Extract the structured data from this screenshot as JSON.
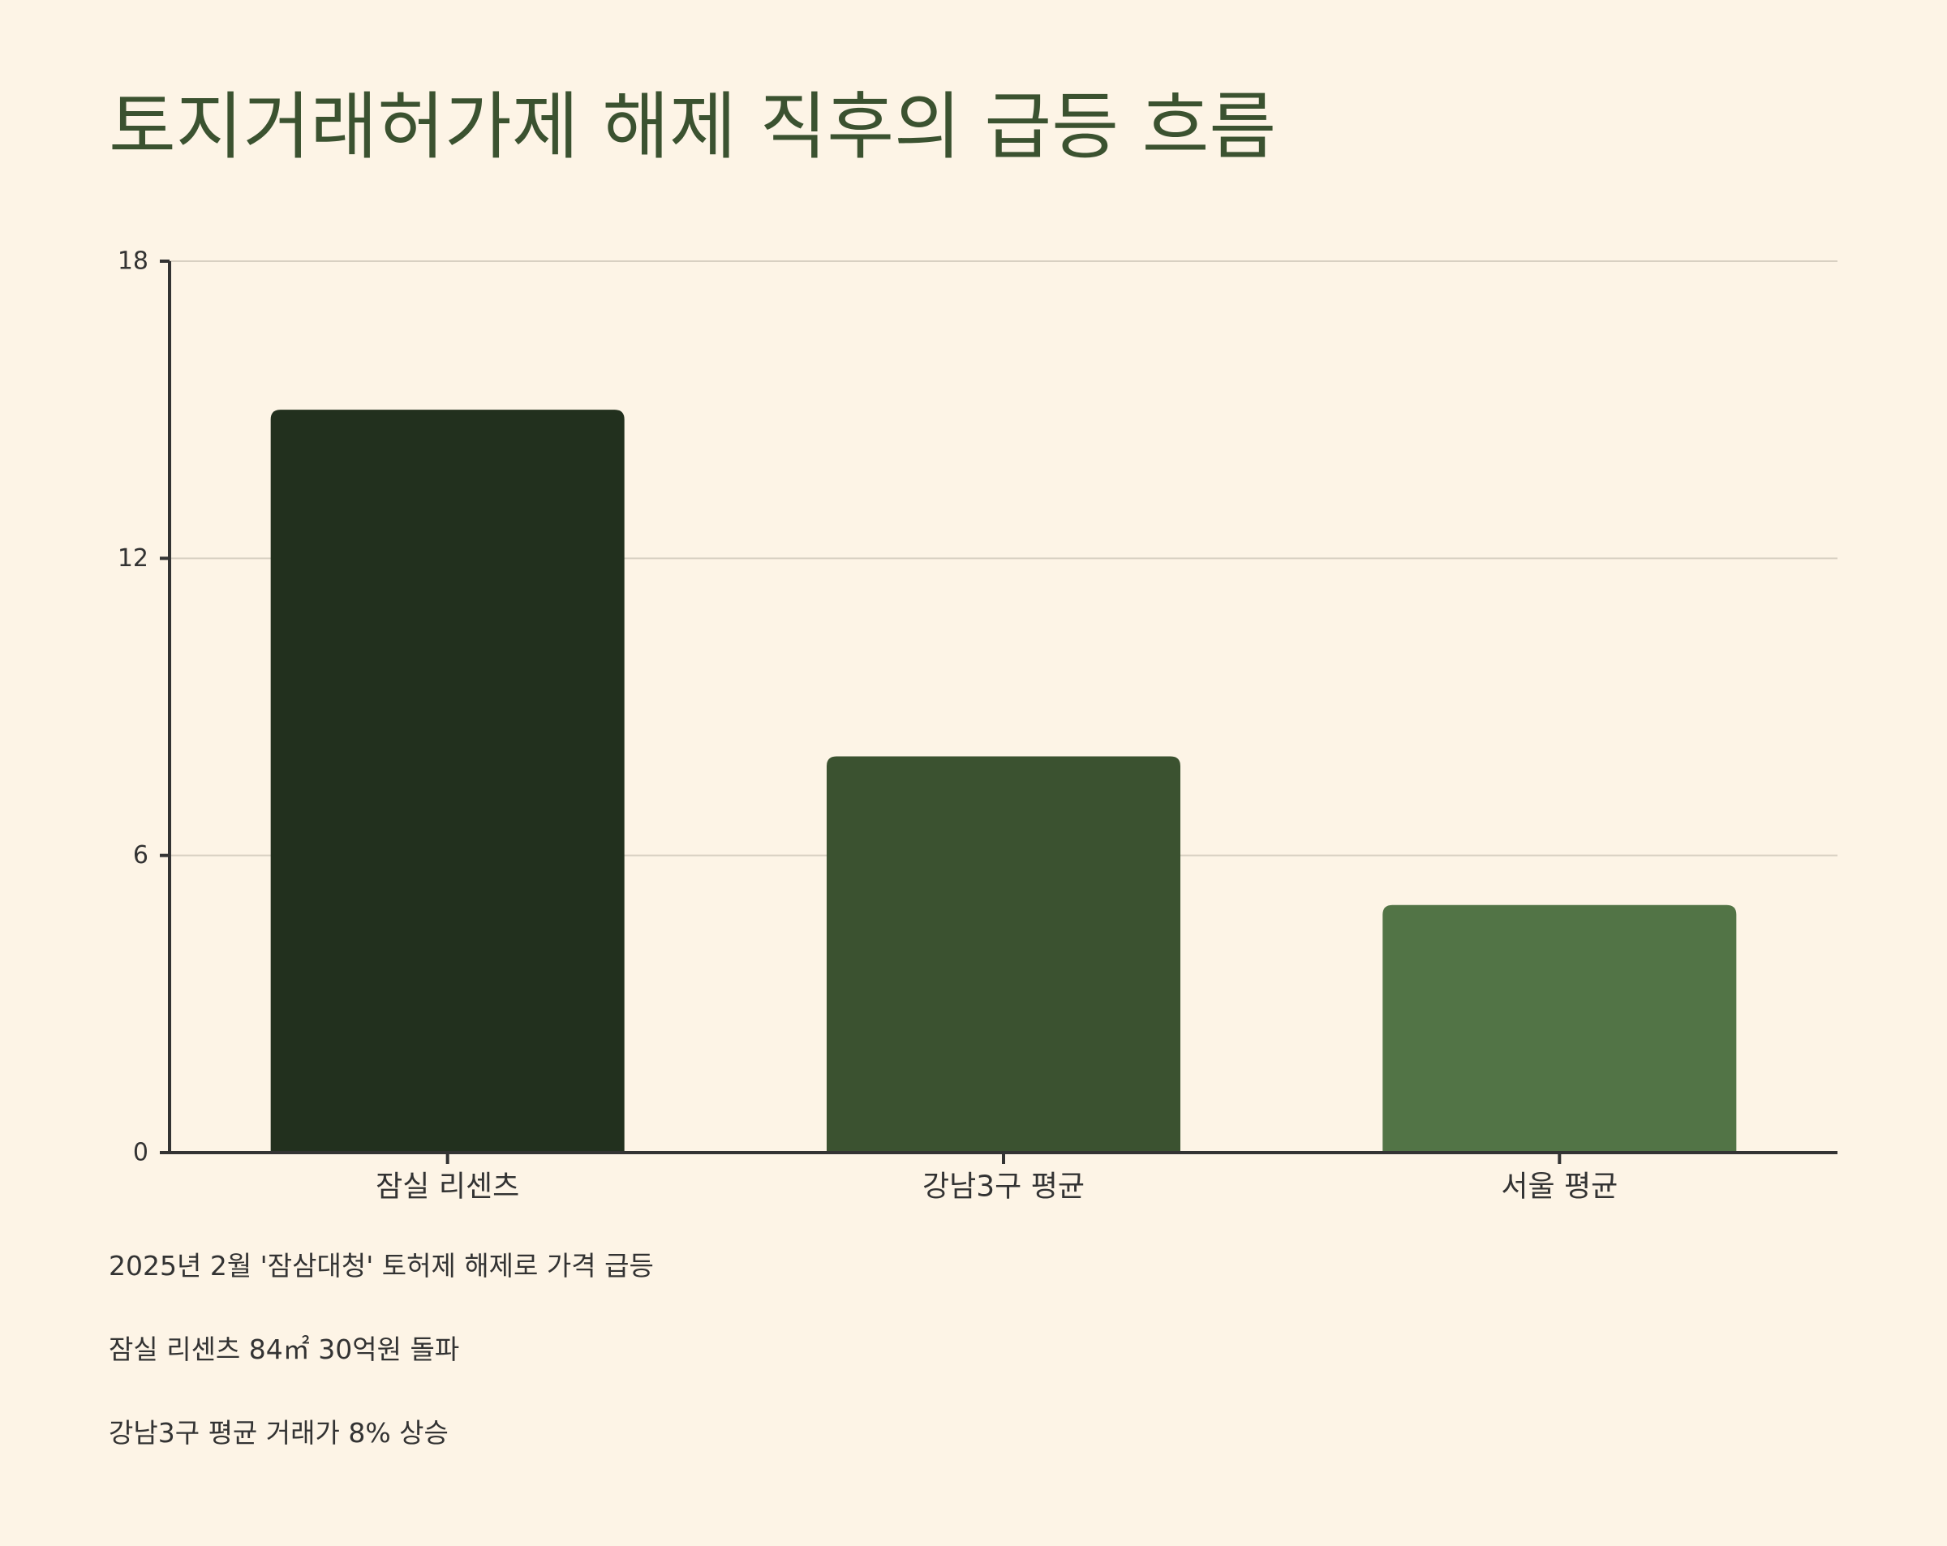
{
  "colors": {
    "background": "#fdf4e6",
    "title": "#3b5230",
    "axis": "#333333",
    "grid": "#d8d0c2",
    "text": "#333333"
  },
  "chart_data": {
    "type": "bar",
    "title": "토지거래허가제 해제 직후의 급등 흐름",
    "xlabel": "",
    "ylabel": "",
    "categories": [
      "잠실 리센츠",
      "강남3구 평균",
      "서울 평균"
    ],
    "values": [
      15,
      8,
      5
    ],
    "bar_colors": [
      "#22301e",
      "#3b5230",
      "#527446"
    ],
    "ylim": [
      0,
      18
    ],
    "yticks": [
      "0",
      "6",
      "12",
      "18"
    ],
    "grid": true,
    "legend": "none"
  },
  "notes": [
    "2025년 2월 '잠삼대청' 토허제 해제로 가격 급등",
    "잠실 리센츠 84㎡ 30억원 돌파",
    "강남3구 평균 거래가 8% 상승"
  ]
}
